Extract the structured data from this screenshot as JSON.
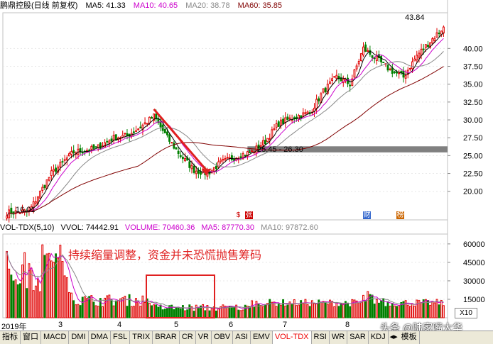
{
  "header": {
    "stock_name": "鹏鼎控股(日线 前复权)",
    "ma5": "MA5: 41.33",
    "ma10": "MA10: 40.65",
    "ma20": "MA20: 38.78",
    "ma60": "MA60: 35.85"
  },
  "colors": {
    "ma5": "#000000",
    "ma10": "#cc00cc",
    "ma20": "#888888",
    "ma60": "#800000",
    "up": "#e00000",
    "down": "#008000",
    "resistance_band": "#808080",
    "annotation": "#e02020"
  },
  "price_labels": {
    "high": "43.84",
    "low": "16.01",
    "range": "25.45 - 26.30"
  },
  "markers": [
    "$",
    "张",
    "财",
    "榜"
  ],
  "volume_header": {
    "indicator": "VOL-TDX(5,10)",
    "vvol": "VVOL: 74442.91",
    "volume": "VOLUME: 70460.36",
    "ma5": "MA5: 87770.30",
    "ma10": "MA10: 97872.60"
  },
  "annotation": "持续缩量调整，资金并未恐慌抛售筹码",
  "scale_button": "X10",
  "date_axis": [
    "2019年",
    "3",
    "4",
    "5",
    "6",
    "7",
    "8"
  ],
  "watermark": "头条 @陆家嘴大华",
  "toolbar": {
    "items": [
      "指标",
      "窗口",
      "MACD",
      "DMI",
      "DMA",
      "FSL",
      "TRIX",
      "BRAR",
      "CR",
      "VR",
      "OBV",
      "ASI",
      "EMV",
      "VOL-TDX",
      "RSI",
      "WR",
      "SAR",
      "KDJ"
    ],
    "active": "VOL-TDX",
    "right_label": "模板"
  },
  "chart_data": [
    {
      "type": "candlestick",
      "title": "鹏鼎控股(日线 前复权)",
      "y_ticks": [
        20.0,
        22.5,
        25.0,
        27.5,
        30.0,
        32.5,
        35.0,
        37.5,
        40.0
      ],
      "ylim": [
        16.0,
        45.0
      ],
      "low": 16.01,
      "high": 43.84,
      "resistance_band": [
        25.45,
        26.3
      ],
      "waypoints": [
        {
          "i": 0,
          "p": 17.0
        },
        {
          "i": 10,
          "p": 17.2
        },
        {
          "i": 20,
          "p": 22.5
        },
        {
          "i": 30,
          "p": 25.5
        },
        {
          "i": 40,
          "p": 26.0
        },
        {
          "i": 48,
          "p": 27.5
        },
        {
          "i": 54,
          "p": 27.8
        },
        {
          "i": 60,
          "p": 29.0
        },
        {
          "i": 66,
          "p": 30.5
        },
        {
          "i": 72,
          "p": 27.5
        },
        {
          "i": 78,
          "p": 25.0
        },
        {
          "i": 84,
          "p": 23.0
        },
        {
          "i": 90,
          "p": 22.5
        },
        {
          "i": 96,
          "p": 24.0
        },
        {
          "i": 104,
          "p": 25.0
        },
        {
          "i": 110,
          "p": 25.5
        },
        {
          "i": 116,
          "p": 27.0
        },
        {
          "i": 122,
          "p": 29.5
        },
        {
          "i": 130,
          "p": 30.5
        },
        {
          "i": 136,
          "p": 31.0
        },
        {
          "i": 142,
          "p": 34.0
        },
        {
          "i": 148,
          "p": 36.0
        },
        {
          "i": 154,
          "p": 35.0
        },
        {
          "i": 160,
          "p": 40.0
        },
        {
          "i": 166,
          "p": 38.5
        },
        {
          "i": 172,
          "p": 37.0
        },
        {
          "i": 178,
          "p": 36.0
        },
        {
          "i": 184,
          "p": 39.0
        },
        {
          "i": 190,
          "p": 41.0
        },
        {
          "i": 196,
          "p": 43.0
        }
      ]
    },
    {
      "type": "bar",
      "title": "VOL-TDX(5,10)",
      "y_ticks": [
        15000,
        30000,
        45000,
        60000
      ],
      "ylim": [
        0,
        68000
      ]
    }
  ]
}
